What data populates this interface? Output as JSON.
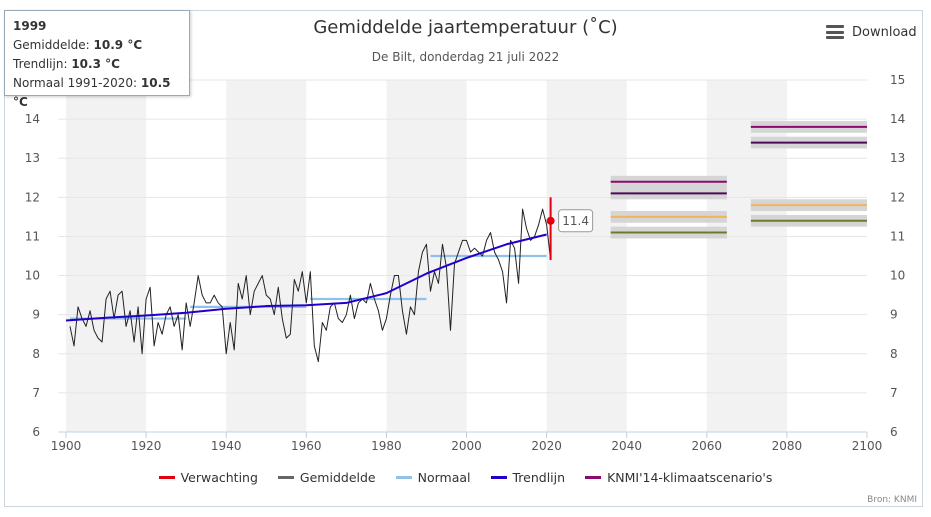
{
  "title": "Gemiddelde jaartemperatuur (˚C)",
  "subtitle": "De Bilt, donderdag 21 juli 2022",
  "download_label": "Download",
  "source": "Bron: KNMI",
  "tooltip": {
    "year": "1999",
    "rows": [
      {
        "label": "Gemiddelde:",
        "value": "10.9 °C"
      },
      {
        "label": "Trendlijn:",
        "value": "10.3 °C"
      },
      {
        "label": "Normaal 1991-2020:",
        "value": "10.5 °C"
      }
    ]
  },
  "colors": {
    "forecast": "#e3000f",
    "average": "#222222",
    "normal": "#8fc1ea",
    "trend": "#2200cc",
    "scenario": "#8b0a6e",
    "band_alt": "#f2f2f2",
    "grid": "#e6e6e6"
  },
  "legend": [
    {
      "label": "Verwachting",
      "color": "#e3000f"
    },
    {
      "label": "Gemiddelde",
      "color": "#666666"
    },
    {
      "label": "Normaal",
      "color": "#8fc1ea"
    },
    {
      "label": "Trendlijn",
      "color": "#2200cc"
    },
    {
      "label": "KNMI'14-klimaatscenario's",
      "color": "#8b0a6e"
    }
  ],
  "chart_data": {
    "type": "line",
    "title": "Gemiddelde jaartemperatuur (˚C)",
    "subtitle": "De Bilt, donderdag 21 juli 2022",
    "xlim": [
      1898,
      2100
    ],
    "ylim": [
      6,
      15
    ],
    "x_ticks": [
      1900,
      1920,
      1940,
      1960,
      1980,
      2000,
      2020,
      2040,
      2060,
      2080,
      2100
    ],
    "y_ticks": [
      6,
      7,
      8,
      9,
      10,
      11,
      12,
      13,
      14,
      15
    ],
    "grid": true,
    "legend_position": "bottom",
    "series": [
      {
        "name": "Gemiddelde",
        "type": "line",
        "x": [
          1901,
          1902,
          1903,
          1904,
          1905,
          1906,
          1907,
          1908,
          1909,
          1910,
          1911,
          1912,
          1913,
          1914,
          1915,
          1916,
          1917,
          1918,
          1919,
          1920,
          1921,
          1922,
          1923,
          1924,
          1925,
          1926,
          1927,
          1928,
          1929,
          1930,
          1931,
          1932,
          1933,
          1934,
          1935,
          1936,
          1937,
          1938,
          1939,
          1940,
          1941,
          1942,
          1943,
          1944,
          1945,
          1946,
          1947,
          1948,
          1949,
          1950,
          1951,
          1952,
          1953,
          1954,
          1955,
          1956,
          1957,
          1958,
          1959,
          1960,
          1961,
          1962,
          1963,
          1964,
          1965,
          1966,
          1967,
          1968,
          1969,
          1970,
          1971,
          1972,
          1973,
          1974,
          1975,
          1976,
          1977,
          1978,
          1979,
          1980,
          1981,
          1982,
          1983,
          1984,
          1985,
          1986,
          1987,
          1988,
          1989,
          1990,
          1991,
          1992,
          1993,
          1994,
          1995,
          1996,
          1997,
          1998,
          1999,
          2000,
          2001,
          2002,
          2003,
          2004,
          2005,
          2006,
          2007,
          2008,
          2009,
          2010,
          2011,
          2012,
          2013,
          2014,
          2015,
          2016,
          2017,
          2018,
          2019,
          2020,
          2021
        ],
        "values": [
          8.7,
          8.2,
          9.2,
          8.9,
          8.7,
          9.1,
          8.6,
          8.4,
          8.3,
          9.4,
          9.6,
          8.9,
          9.5,
          9.6,
          8.7,
          9.1,
          8.3,
          9.2,
          8.0,
          9.4,
          9.7,
          8.2,
          8.8,
          8.5,
          9.0,
          9.2,
          8.7,
          9.0,
          8.1,
          9.3,
          8.7,
          9.3,
          10.0,
          9.5,
          9.3,
          9.3,
          9.5,
          9.3,
          9.2,
          8.0,
          8.8,
          8.1,
          9.8,
          9.4,
          10.0,
          9.0,
          9.6,
          9.8,
          10.0,
          9.5,
          9.4,
          9.0,
          9.7,
          8.9,
          8.4,
          8.5,
          9.9,
          9.6,
          10.1,
          9.3,
          10.1,
          8.2,
          7.8,
          8.8,
          8.6,
          9.2,
          9.3,
          8.9,
          8.8,
          9.0,
          9.5,
          8.9,
          9.3,
          9.4,
          9.3,
          9.8,
          9.4,
          9.1,
          8.6,
          8.9,
          9.5,
          10.0,
          10.0,
          9.1,
          8.5,
          9.2,
          9.0,
          10.1,
          10.6,
          10.8,
          9.6,
          10.1,
          9.8,
          10.8,
          10.2,
          8.6,
          10.3,
          10.6,
          10.9,
          10.9,
          10.6,
          10.7,
          10.6,
          10.5,
          10.9,
          11.1,
          10.6,
          10.4,
          10.1,
          9.3,
          10.9,
          10.7,
          9.8,
          11.7,
          11.2,
          10.9,
          11.0,
          11.3,
          11.7,
          11.3,
          10.4
        ]
      },
      {
        "name": "Trendlijn",
        "type": "line",
        "x": [
          1900,
          1910,
          1920,
          1930,
          1940,
          1950,
          1960,
          1970,
          1980,
          1990,
          2000,
          2010,
          2020
        ],
        "values": [
          8.85,
          8.92,
          8.98,
          9.05,
          9.15,
          9.22,
          9.24,
          9.3,
          9.55,
          10.05,
          10.45,
          10.8,
          11.05
        ]
      }
    ],
    "normals": [
      {
        "x": [
          1901,
          1930
        ],
        "value": 8.9
      },
      {
        "x": [
          1931,
          1960
        ],
        "value": 9.2
      },
      {
        "x": [
          1961,
          1990
        ],
        "value": 9.4
      },
      {
        "x": [
          1991,
          2020
        ],
        "value": 10.5
      }
    ],
    "forecast": {
      "year": 2021,
      "value": 11.4,
      "range": [
        10.4,
        12.0
      ],
      "label": "11.4"
    },
    "scenarios": [
      {
        "x": [
          2036,
          2065
        ],
        "value": 12.4,
        "color": "#8b0a6e"
      },
      {
        "x": [
          2036,
          2065
        ],
        "value": 12.1,
        "color": "#4b0a5a"
      },
      {
        "x": [
          2036,
          2065
        ],
        "value": 11.5,
        "color": "#f0b55a"
      },
      {
        "x": [
          2036,
          2065
        ],
        "value": 11.1,
        "color": "#6e7a2a"
      },
      {
        "x": [
          2071,
          2100
        ],
        "value": 13.8,
        "color": "#8b0a6e"
      },
      {
        "x": [
          2071,
          2100
        ],
        "value": 13.4,
        "color": "#4b0a5a"
      },
      {
        "x": [
          2071,
          2100
        ],
        "value": 11.8,
        "color": "#f0b55a"
      },
      {
        "x": [
          2071,
          2100
        ],
        "value": 11.4,
        "color": "#6e7a2a"
      }
    ]
  }
}
